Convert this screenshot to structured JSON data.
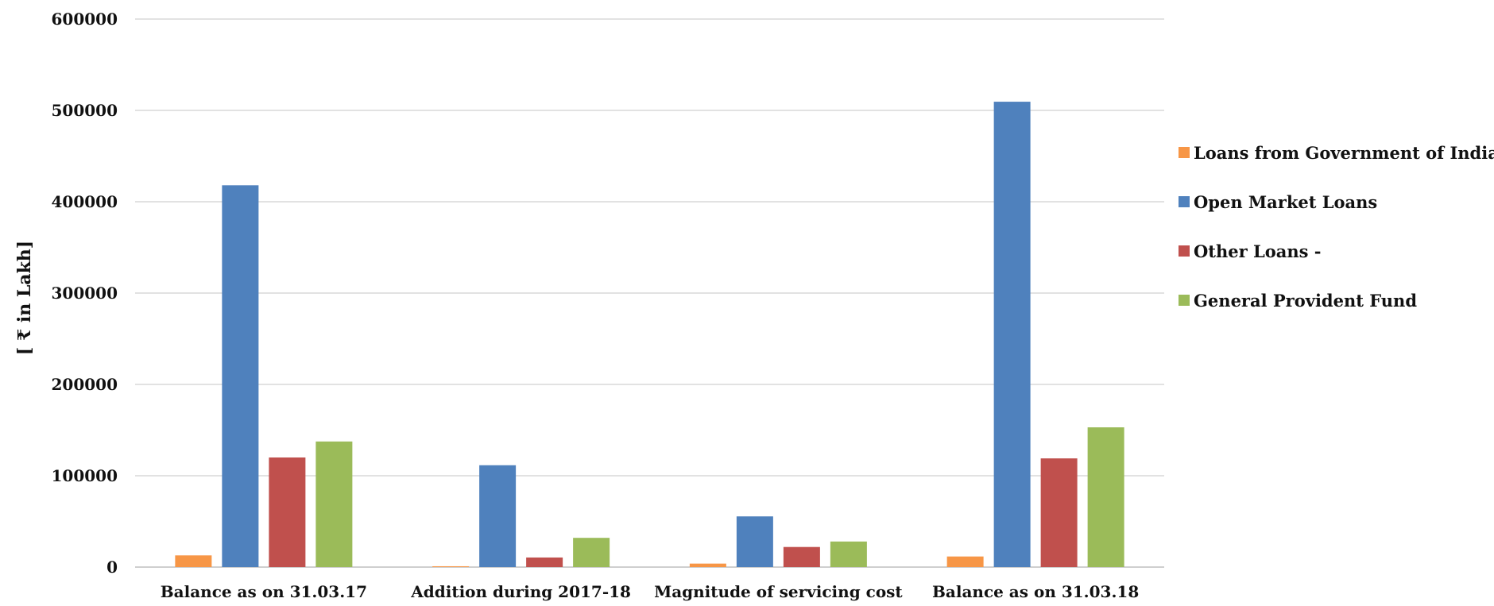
{
  "chart_data": {
    "type": "bar",
    "title": "",
    "xlabel": "",
    "ylabel": "[ ₹ in Lakh]",
    "ylim": [
      0,
      600000
    ],
    "yticks": [
      0,
      100000,
      200000,
      300000,
      400000,
      500000,
      600000
    ],
    "ytick_labels": [
      "0",
      "100000",
      "200000",
      "300000",
      "400000",
      "500000",
      "600000"
    ],
    "grid": "horizontal",
    "legend_position": "right",
    "categories": [
      "Balance as on 31.03.17",
      "Addition during 2017-18",
      "Magnitude of servicing cost",
      "Balance as on 31.03.18"
    ],
    "series": [
      {
        "name": "Loans from Government of India",
        "color": "#F79646",
        "values": [
          12800,
          900,
          3800,
          11600
        ]
      },
      {
        "name": "Open Market Loans",
        "color": "#4F81BD",
        "values": [
          418000,
          111500,
          55500,
          509500
        ]
      },
      {
        "name": "Other Loans -",
        "color": "#C0504D",
        "values": [
          120000,
          10500,
          22000,
          119000
        ]
      },
      {
        "name": "General Provident Fund",
        "color": "#9BBB59",
        "values": [
          137500,
          32000,
          28000,
          153000
        ]
      }
    ]
  }
}
